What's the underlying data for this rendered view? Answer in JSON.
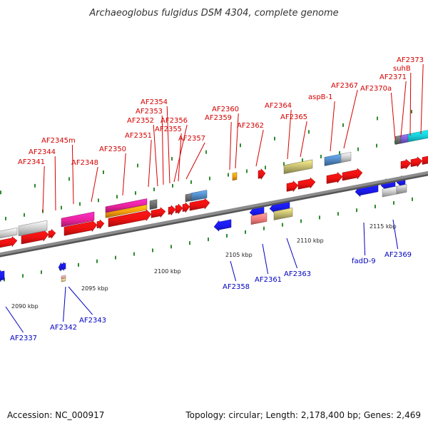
{
  "title": "Archaeoglobus fulgidus DSM 4304, complete genome",
  "footer": {
    "accession": "Accession: NC_000917",
    "summary": "Topology: circular; Length: 2,178,400 bp; Genes: 2,469"
  },
  "colors": {
    "forward_label": "#d40000",
    "reverse_label": "#0000c0",
    "backbone": "#8c8c8c",
    "tick": "#2e8b2e"
  },
  "scale_labels": [
    "2090 kbp",
    "2095 kbp",
    "2100 kbp",
    "2105 kbp",
    "2110 kbp",
    "2115 kbp"
  ],
  "forward_genes": [
    "AF2341",
    "AF2344",
    "AF2345m",
    "AF2348",
    "AF2350",
    "AF2351",
    "AF2352",
    "AF2353",
    "AF2354",
    "AF2355",
    "AF2356",
    "AF2357",
    "AF2359",
    "AF2360",
    "AF2362",
    "AF2364",
    "AF2365",
    "aspB-1",
    "AF2367",
    "AF2370a",
    "AF2371",
    "suhB",
    "AF2373"
  ],
  "reverse_genes": [
    "AF2337",
    "AF2342",
    "AF2343",
    "AF2358",
    "AF2361",
    "AF2363",
    "fadD-9",
    "AF2369"
  ]
}
